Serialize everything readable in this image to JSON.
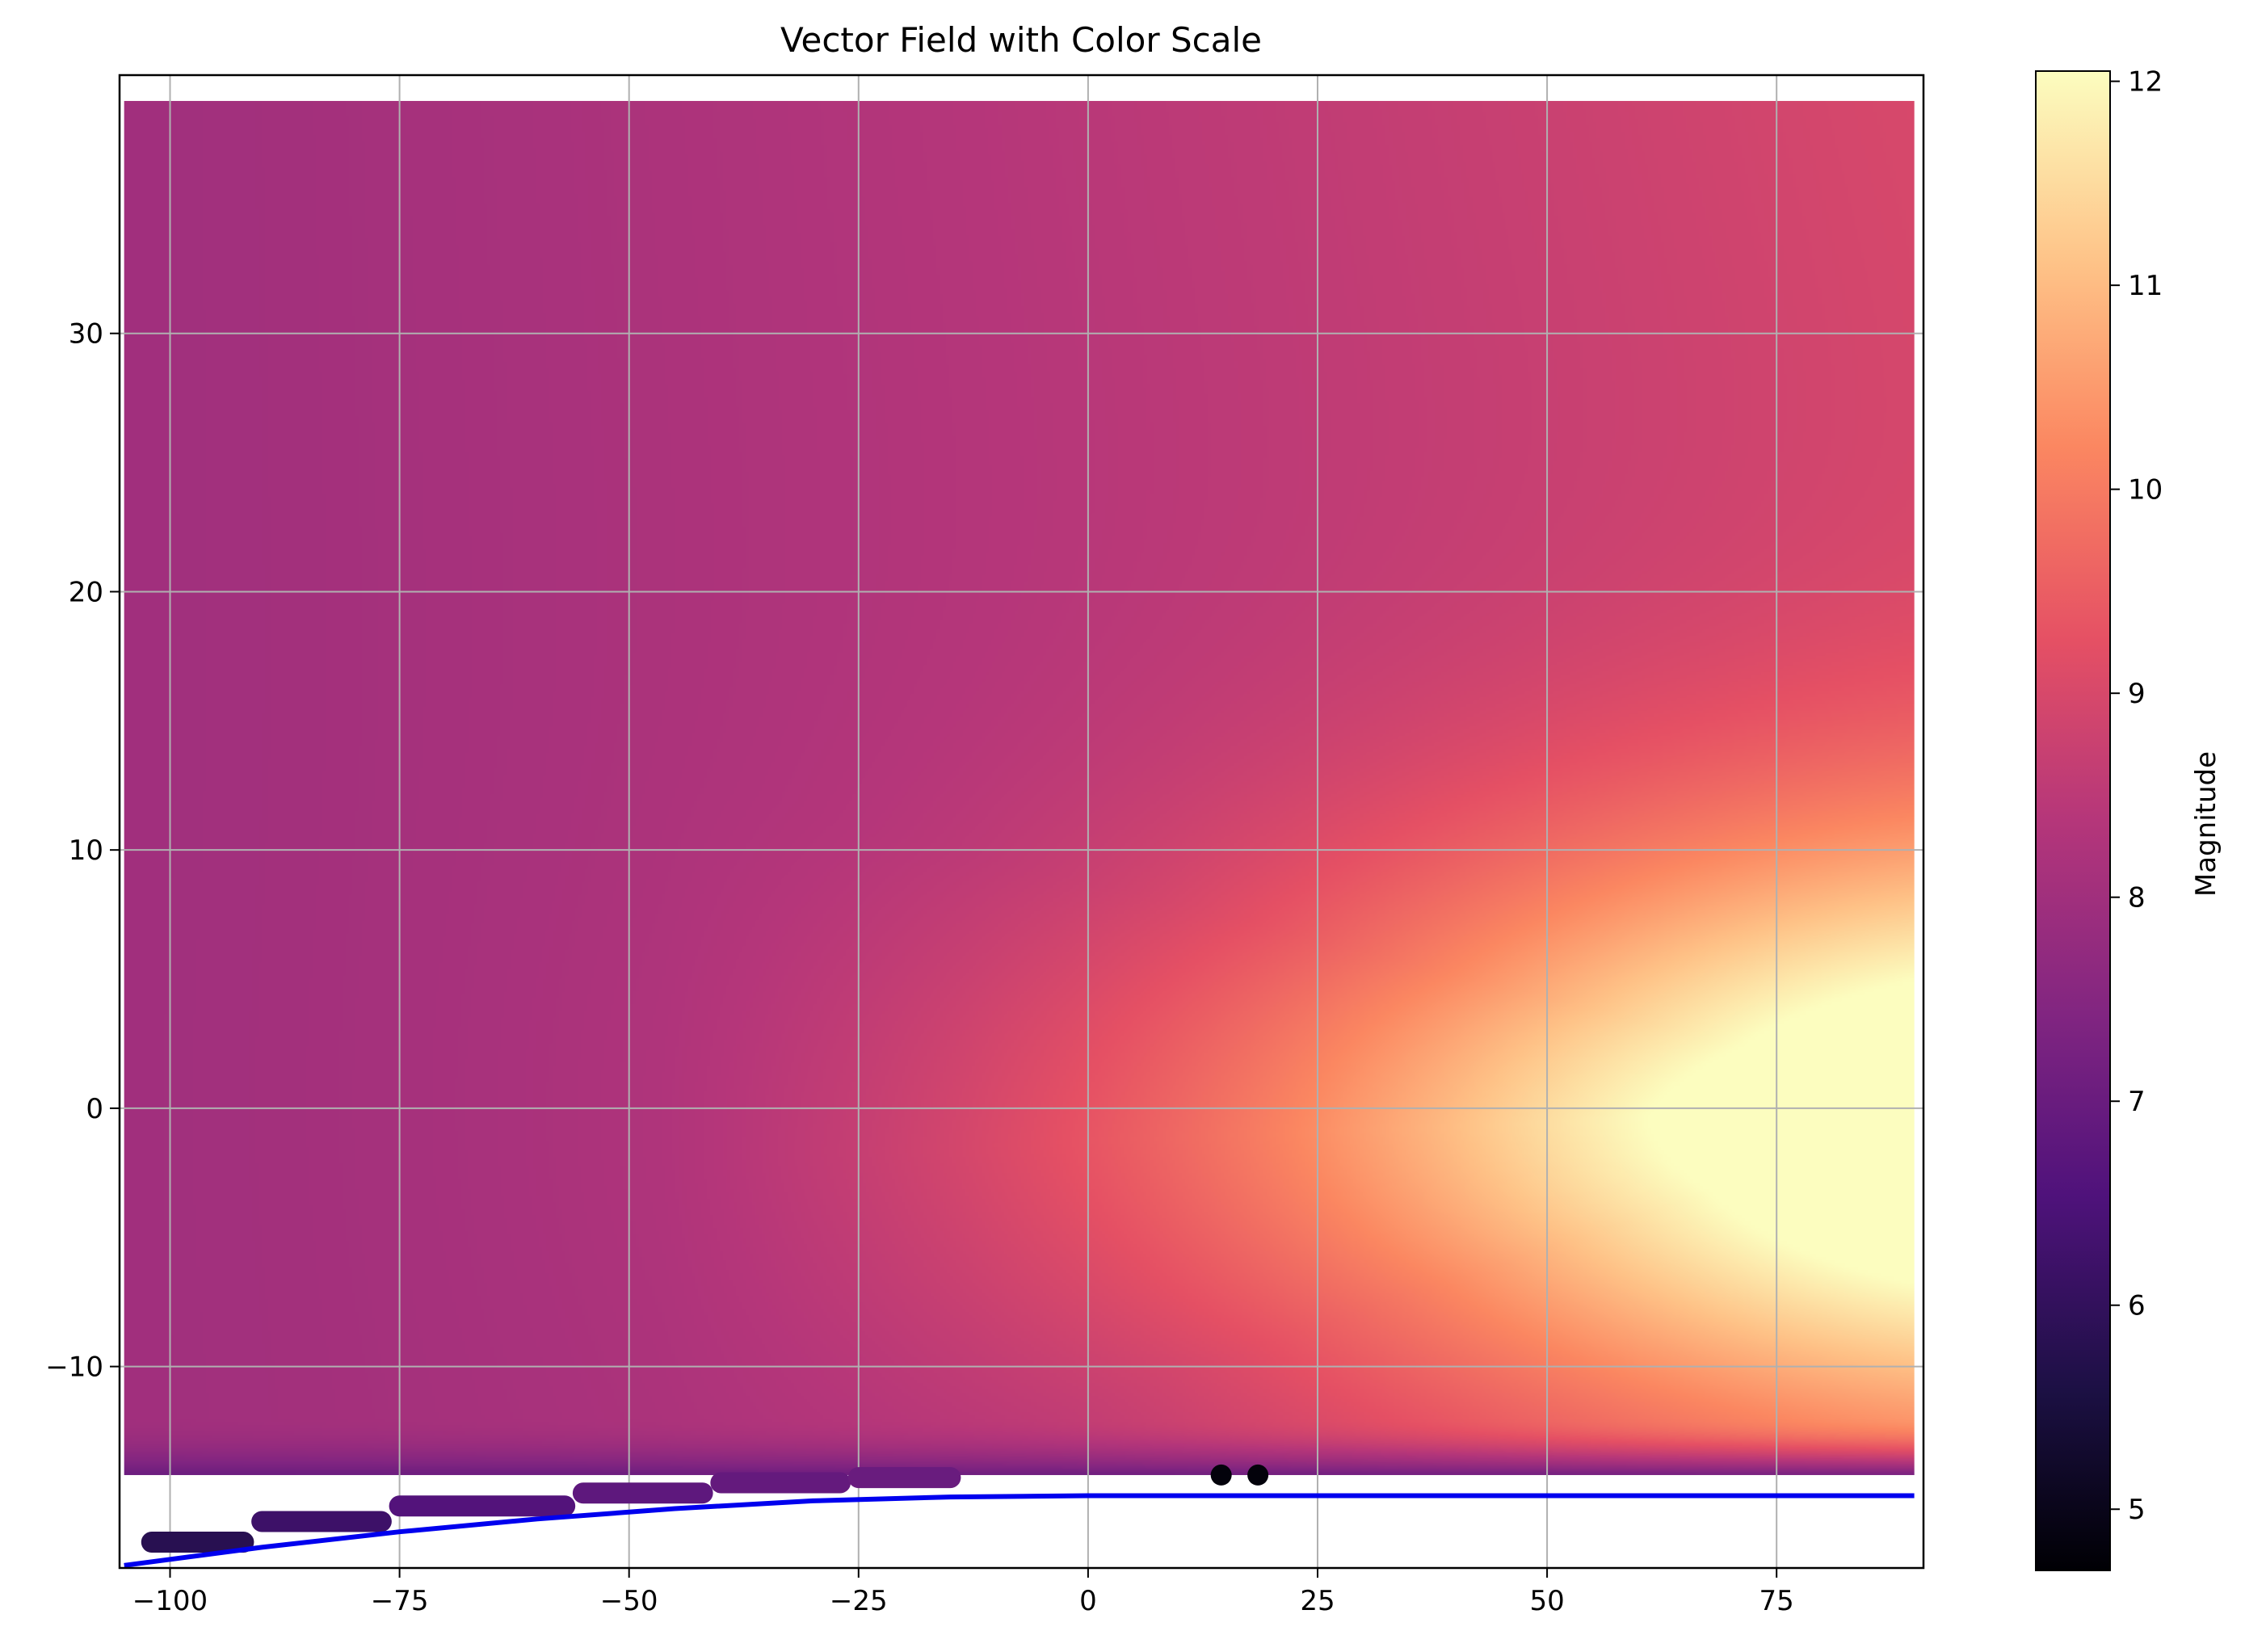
{
  "chart_data": {
    "type": "heatmap",
    "title": "Vector Field with Color Scale",
    "xlabel": "",
    "ylabel": "",
    "xlim": [
      -105.5,
      91
    ],
    "ylim": [
      -17.8,
      40
    ],
    "x_ticks": [
      -100,
      -75,
      -50,
      -25,
      0,
      25,
      50,
      75
    ],
    "x_tick_labels": [
      "−100",
      "−75",
      "−50",
      "−25",
      "0",
      "25",
      "50",
      "75"
    ],
    "y_ticks": [
      -10,
      0,
      10,
      20,
      30
    ],
    "y_tick_labels": [
      "−10",
      "0",
      "10",
      "20",
      "30"
    ],
    "grid": true,
    "colormap": "magma",
    "colorbar": {
      "label": "Magnitude",
      "range": [
        4.7,
        12.05
      ],
      "ticks": [
        5,
        6,
        7,
        8,
        9,
        10,
        11,
        12
      ],
      "tick_labels": [
        "5",
        "6",
        "7",
        "8",
        "9",
        "10",
        "11",
        "12"
      ]
    },
    "field": {
      "x_range": [
        -105,
        90
      ],
      "y_range": [
        -14.2,
        39
      ],
      "peak_region": {
        "x": [
          50,
          90
        ],
        "y": [
          -9,
          10
        ],
        "magnitude": 12
      },
      "magnitude_samples": [
        {
          "x": -105,
          "y": 38,
          "magnitude": 8.0
        },
        {
          "x": -105,
          "y": 0,
          "magnitude": 8.0
        },
        {
          "x": -50,
          "y": 30,
          "magnitude": 8.2
        },
        {
          "x": 0,
          "y": 30,
          "magnitude": 8.6
        },
        {
          "x": 50,
          "y": 30,
          "magnitude": 9.3
        },
        {
          "x": 90,
          "y": 30,
          "magnitude": 10.3
        },
        {
          "x": 90,
          "y": 20,
          "magnitude": 10.9
        },
        {
          "x": 0,
          "y": 0,
          "magnitude": 10.0
        },
        {
          "x": 25,
          "y": 0,
          "magnitude": 11.0
        },
        {
          "x": 50,
          "y": 0,
          "magnitude": 12.0
        },
        {
          "x": 0,
          "y": -10,
          "magnitude": 9.6
        },
        {
          "x": -50,
          "y": 0,
          "magnitude": 8.7
        },
        {
          "x": 80,
          "y": -14,
          "magnitude": 6.6
        }
      ]
    },
    "bottom_trail": {
      "color": "#3b0f70",
      "points": [
        {
          "x": -102,
          "y": -16.8,
          "magnitude": 5.8
        },
        {
          "x": -90,
          "y": -16.0,
          "magnitude": 6.2
        },
        {
          "x": -75,
          "y": -15.4,
          "magnitude": 6.6
        },
        {
          "x": -55,
          "y": -14.9,
          "magnitude": 6.8
        },
        {
          "x": -40,
          "y": -14.5,
          "magnitude": 6.9
        },
        {
          "x": -25,
          "y": -14.3,
          "magnitude": 7.0
        }
      ]
    },
    "dark_spots": [
      {
        "x": 14.5,
        "y": -14.2,
        "magnitude": 4.8
      },
      {
        "x": 18.5,
        "y": -14.2,
        "magnitude": 4.8
      }
    ],
    "series": [
      {
        "color": "#0000ee",
        "x": [
          -105,
          -90,
          -75,
          -60,
          -45,
          -30,
          -15,
          0,
          25,
          50,
          75,
          90
        ],
        "y": [
          -17.7,
          -17.0,
          -16.4,
          -15.9,
          -15.5,
          -15.2,
          -15.05,
          -15.0,
          -15.0,
          -15.0,
          -15.0,
          -15.0
        ]
      }
    ]
  }
}
